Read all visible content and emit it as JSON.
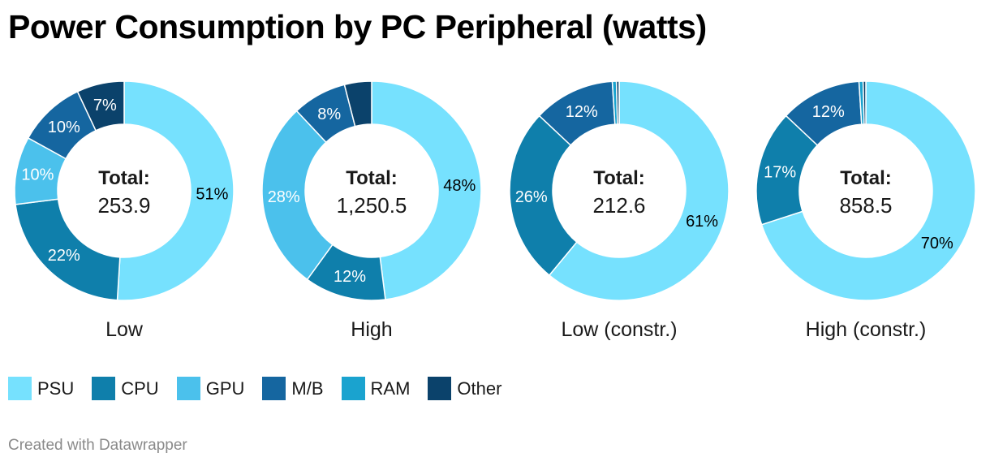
{
  "title": "Power Consumption by PC Peripheral (watts)",
  "credit": "Created with Datawrapper",
  "colors": {
    "PSU": "#76e1fe",
    "CPU": "#0f7fab",
    "GPU": "#4bc1ec",
    "M/B": "#1566a0",
    "RAM": "#1aa3cf",
    "Other": "#0b426b"
  },
  "legend": [
    "PSU",
    "CPU",
    "GPU",
    "M/B",
    "RAM",
    "Other"
  ],
  "chart_data": [
    {
      "type": "pie",
      "label": "Low",
      "total_label": "Total:",
      "total": "253.9",
      "slices": [
        {
          "name": "PSU",
          "value": 51,
          "label": "51%"
        },
        {
          "name": "CPU",
          "value": 22,
          "label": "22%"
        },
        {
          "name": "GPU",
          "value": 10,
          "label": "10%"
        },
        {
          "name": "M/B",
          "value": 10,
          "label": "10%"
        },
        {
          "name": "Other",
          "value": 7,
          "label": "7%"
        }
      ]
    },
    {
      "type": "pie",
      "label": "High",
      "total_label": "Total:",
      "total": "1,250.5",
      "slices": [
        {
          "name": "PSU",
          "value": 48,
          "label": "48%"
        },
        {
          "name": "CPU",
          "value": 12,
          "label": "12%"
        },
        {
          "name": "GPU",
          "value": 28,
          "label": "28%"
        },
        {
          "name": "M/B",
          "value": 8,
          "label": "8%"
        },
        {
          "name": "Other",
          "value": 4,
          "label": ""
        }
      ]
    },
    {
      "type": "pie",
      "label": "Low (constr.)",
      "total_label": "Total:",
      "total": "212.6",
      "slices": [
        {
          "name": "PSU",
          "value": 61,
          "label": "61%"
        },
        {
          "name": "CPU",
          "value": 26,
          "label": "26%"
        },
        {
          "name": "M/B",
          "value": 12,
          "label": "12%"
        },
        {
          "name": "RAM",
          "value": 0.6,
          "label": ""
        },
        {
          "name": "Other",
          "value": 0.4,
          "label": ""
        }
      ]
    },
    {
      "type": "pie",
      "label": "High (constr.)",
      "total_label": "Total:",
      "total": "858.5",
      "slices": [
        {
          "name": "PSU",
          "value": 70,
          "label": "70%"
        },
        {
          "name": "CPU",
          "value": 17,
          "label": "17%"
        },
        {
          "name": "M/B",
          "value": 12,
          "label": "12%"
        },
        {
          "name": "RAM",
          "value": 0.6,
          "label": ""
        },
        {
          "name": "Other",
          "value": 0.4,
          "label": ""
        }
      ]
    }
  ]
}
